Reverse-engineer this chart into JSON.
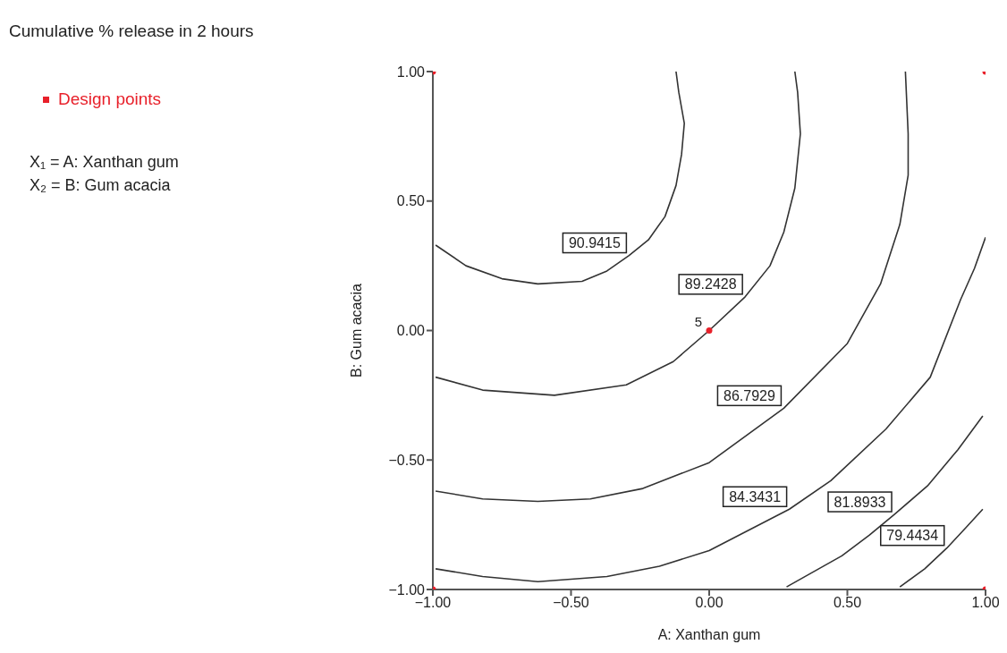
{
  "chart_data": {
    "type": "line",
    "title": "Cumulative % release in 2 hours",
    "xlabel": "A: Xanthan gum",
    "ylabel": "B: Gum acacia",
    "xlim": [
      -1,
      1
    ],
    "ylim": [
      -1,
      1
    ],
    "xticks": [
      {
        "value": -1,
        "label": "−1.00"
      },
      {
        "value": -0.5,
        "label": "−0.50"
      },
      {
        "value": 0,
        "label": "0.00"
      },
      {
        "value": 0.5,
        "label": "0.50"
      },
      {
        "value": 1,
        "label": "1.00"
      }
    ],
    "yticks": [
      {
        "value": -1,
        "label": "−1.00"
      },
      {
        "value": -0.5,
        "label": "−0.50"
      },
      {
        "value": 0,
        "label": "0.00"
      },
      {
        "value": 0.5,
        "label": "0.50"
      },
      {
        "value": 1,
        "label": "1.00"
      }
    ],
    "grid": false,
    "legend": "left",
    "line_style": "solid",
    "annotations": [
      "X₁ = A: Xanthan gum",
      "X₂ = B: Gum acacia",
      {
        "text": "5",
        "x": 0,
        "y": 0
      }
    ],
    "series": [
      {
        "name": "90.9415",
        "color": "#333333",
        "x": [
          -0.99,
          -0.88,
          -0.75,
          -0.62,
          -0.46,
          -0.37,
          -0.29,
          -0.22,
          -0.16,
          -0.12,
          -0.1,
          -0.09,
          -0.11,
          -0.12
        ],
        "values": [
          0.33,
          0.25,
          0.2,
          0.18,
          0.19,
          0.23,
          0.29,
          0.35,
          0.44,
          0.56,
          0.68,
          0.8,
          0.92,
          1.0
        ]
      },
      {
        "name": "89.2428",
        "color": "#333333",
        "x": [
          -0.99,
          -0.82,
          -0.56,
          -0.3,
          -0.13,
          0,
          0.13,
          0.22,
          0.27,
          0.31,
          0.33,
          0.32,
          0.31
        ],
        "values": [
          -0.18,
          -0.23,
          -0.25,
          -0.21,
          -0.12,
          0,
          0.13,
          0.25,
          0.38,
          0.55,
          0.76,
          0.92,
          1.0
        ]
      },
      {
        "name": "86.7929",
        "color": "#333333",
        "x": [
          -0.99,
          -0.82,
          -0.62,
          -0.43,
          -0.24,
          0,
          0.27,
          0.5,
          0.62,
          0.69,
          0.72,
          0.72,
          0.71
        ],
        "values": [
          -0.62,
          -0.65,
          -0.66,
          -0.65,
          -0.61,
          -0.51,
          -0.3,
          -0.05,
          0.18,
          0.41,
          0.6,
          0.76,
          1.0
        ]
      },
      {
        "name": "84.3431",
        "color": "#333333",
        "x": [
          -0.99,
          -0.82,
          -0.62,
          -0.37,
          -0.18,
          0,
          0.29,
          0.44,
          0.64,
          0.8,
          0.91,
          0.96,
          1.0
        ],
        "values": [
          -0.92,
          -0.95,
          -0.97,
          -0.95,
          -0.91,
          -0.85,
          -0.69,
          -0.58,
          -0.38,
          -0.18,
          0.12,
          0.24,
          0.36
        ]
      },
      {
        "name": "81.8933",
        "color": "#333333",
        "x": [
          0.28,
          0.48,
          0.58,
          0.67,
          0.79,
          0.9,
          0.99
        ],
        "values": [
          -0.99,
          -0.87,
          -0.79,
          -0.71,
          -0.6,
          -0.46,
          -0.33
        ]
      },
      {
        "name": "79.4434",
        "color": "#333333",
        "x": [
          0.69,
          0.78,
          0.86,
          0.93,
          0.99
        ],
        "values": [
          -0.99,
          -0.92,
          -0.84,
          -0.76,
          -0.69
        ]
      },
      {
        "type": "scatter",
        "name": "Design points",
        "color": "#e8202a",
        "marker": "circle",
        "x": [
          -1,
          1,
          -1,
          1,
          0
        ],
        "values": [
          1,
          1,
          -1,
          -1,
          0
        ]
      }
    ]
  }
}
